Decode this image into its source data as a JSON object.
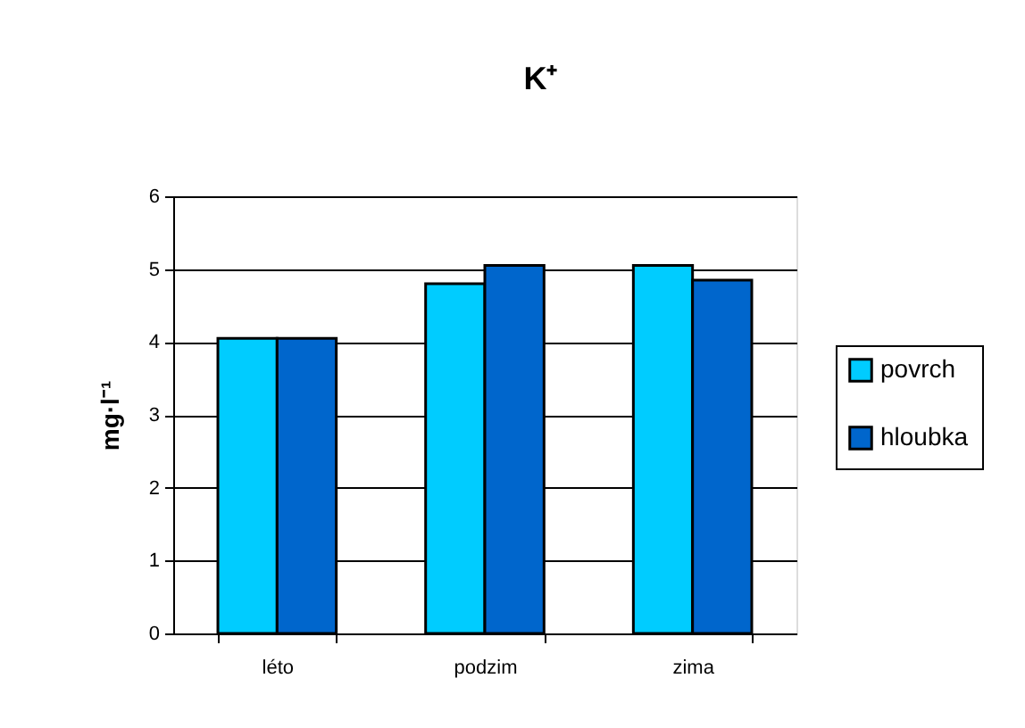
{
  "chart_data": {
    "type": "bar",
    "title": "K⁺",
    "ylabel": "mg·l⁻¹",
    "categories": [
      "léto",
      "podzim",
      "zima"
    ],
    "series": [
      {
        "name": "povrch",
        "color": "#00ccff",
        "values": [
          4.05,
          4.8,
          5.05
        ]
      },
      {
        "name": "hloubka",
        "color": "#0066cc",
        "values": [
          4.05,
          5.05,
          4.85
        ]
      }
    ],
    "ylim": [
      0,
      6
    ],
    "yticks": [
      0,
      1,
      2,
      3,
      4,
      5,
      6
    ],
    "grid": "y",
    "legend": "right"
  }
}
